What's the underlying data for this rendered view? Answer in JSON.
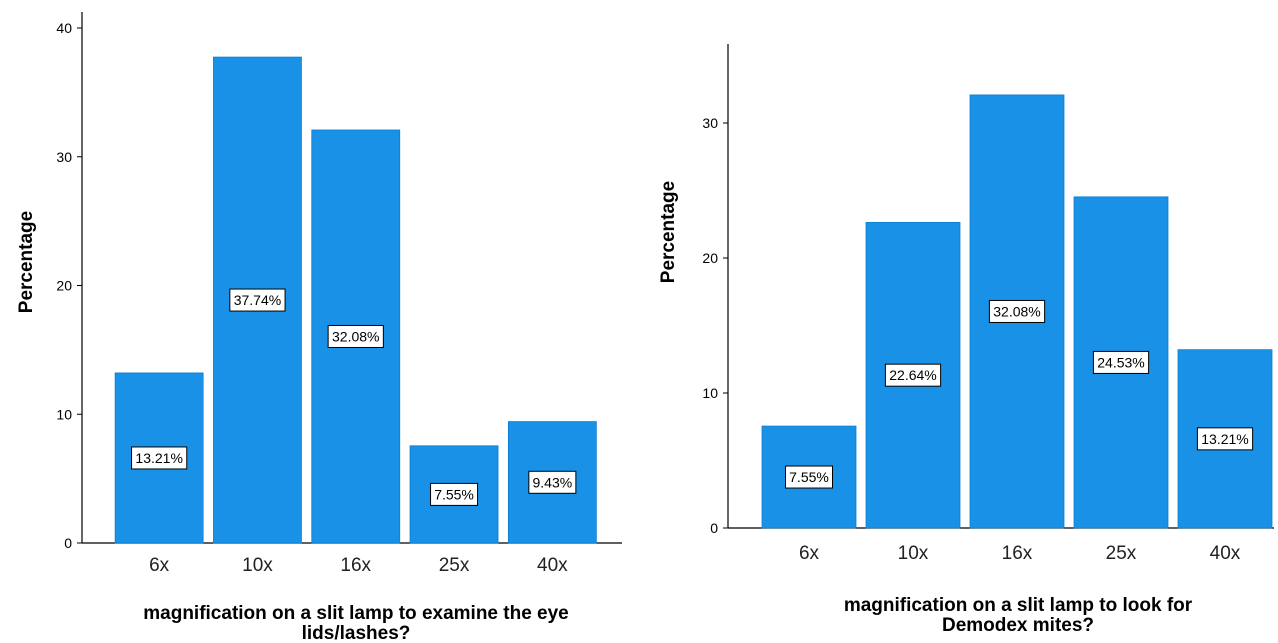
{
  "chart_data": [
    {
      "type": "bar",
      "categories": [
        "6x",
        "10x",
        "16x",
        "25x",
        "40x"
      ],
      "values": [
        13.21,
        37.74,
        32.08,
        7.55,
        9.43
      ],
      "data_labels": [
        "13.21%",
        "37.74%",
        "32.08%",
        "7.55%",
        "9.43%"
      ],
      "ylabel": "Percentage",
      "xlabel_lines": [
        "magnification on a slit lamp to examine the eye",
        "lids/lashes?"
      ],
      "yticks": [
        0,
        10,
        20,
        30,
        40
      ],
      "ylim": [
        0,
        40
      ],
      "bar_color": "#1991e6",
      "grid": false
    },
    {
      "type": "bar",
      "categories": [
        "6x",
        "10x",
        "16x",
        "25x",
        "40x"
      ],
      "values": [
        7.55,
        22.64,
        32.08,
        24.53,
        13.21
      ],
      "data_labels": [
        "7.55%",
        "22.64%",
        "32.08%",
        "24.53%",
        "13.21%"
      ],
      "ylabel": "Percentage",
      "xlabel_lines": [
        "magnification on a slit lamp to look for",
        "Demodex mites?"
      ],
      "yticks": [
        0,
        10,
        20,
        30
      ],
      "ylim": [
        0,
        30
      ],
      "bar_color": "#1991e6",
      "grid": false
    }
  ]
}
